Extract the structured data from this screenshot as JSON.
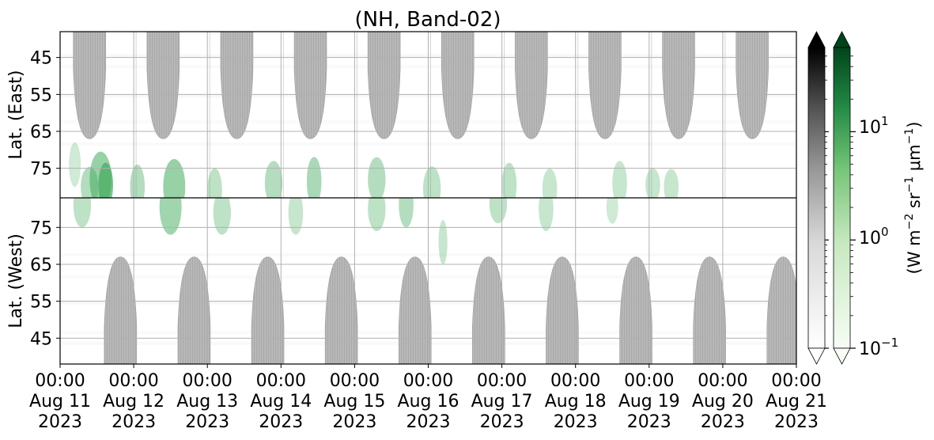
{
  "chart_data": {
    "type": "heatmap",
    "title": "(NH, Band-02)",
    "x_ticks": [
      {
        "time": "00:00",
        "date": "Aug 11",
        "year": "2023"
      },
      {
        "time": "00:00",
        "date": "Aug 12",
        "year": "2023"
      },
      {
        "time": "00:00",
        "date": "Aug 13",
        "year": "2023"
      },
      {
        "time": "00:00",
        "date": "Aug 14",
        "year": "2023"
      },
      {
        "time": "00:00",
        "date": "Aug 15",
        "year": "2023"
      },
      {
        "time": "00:00",
        "date": "Aug 16",
        "year": "2023"
      },
      {
        "time": "00:00",
        "date": "Aug 17",
        "year": "2023"
      },
      {
        "time": "00:00",
        "date": "Aug 18",
        "year": "2023"
      },
      {
        "time": "00:00",
        "date": "Aug 19",
        "year": "2023"
      },
      {
        "time": "00:00",
        "date": "Aug 20",
        "year": "2023"
      },
      {
        "time": "00:00",
        "date": "Aug 21",
        "year": "2023"
      }
    ],
    "xlim": [
      "2023-08-11 00:00",
      "2023-08-21 00:00"
    ],
    "panels": [
      {
        "ylabel": "Lat. (East)",
        "yticks": [
          45,
          55,
          65,
          75
        ],
        "ylim": [
          38,
          83
        ],
        "y_direction": "down"
      },
      {
        "ylabel": "Lat. (West)",
        "yticks": [
          75,
          65,
          55,
          45
        ],
        "ylim": [
          38,
          83
        ],
        "y_direction": "up"
      }
    ],
    "grid": true,
    "night_mask_color": "#b4b4b4",
    "colorbars": [
      {
        "cmap": "Greys",
        "extend": "both",
        "scale": "log",
        "range": [
          0.1,
          60
        ]
      },
      {
        "cmap": "Greens",
        "extend": "both",
        "scale": "log",
        "range": [
          0.1,
          60
        ],
        "ticks": [
          "10$1",
          "10$0",
          "10$-1"
        ],
        "tick_values": [
          10,
          1,
          0.1
        ],
        "label": "(W m$-2 sr$-1 μm$-1)"
      }
    ],
    "colorbar_tick_labels": [
      {
        "base": "10",
        "exp": "1"
      },
      {
        "base": "10",
        "exp": "0"
      },
      {
        "base": "10",
        "exp": "−1"
      }
    ],
    "colorbar_label_parts": [
      "(W m",
      "−2",
      " sr",
      "−1",
      " μm",
      "−1",
      ")"
    ]
  },
  "colors": {
    "green_dark": "#00441b",
    "green_mid": "#41ab5d",
    "green_light": "#c7e9c0",
    "grey_mask": "#b4b4b4",
    "grid": "#b0b0b0"
  }
}
